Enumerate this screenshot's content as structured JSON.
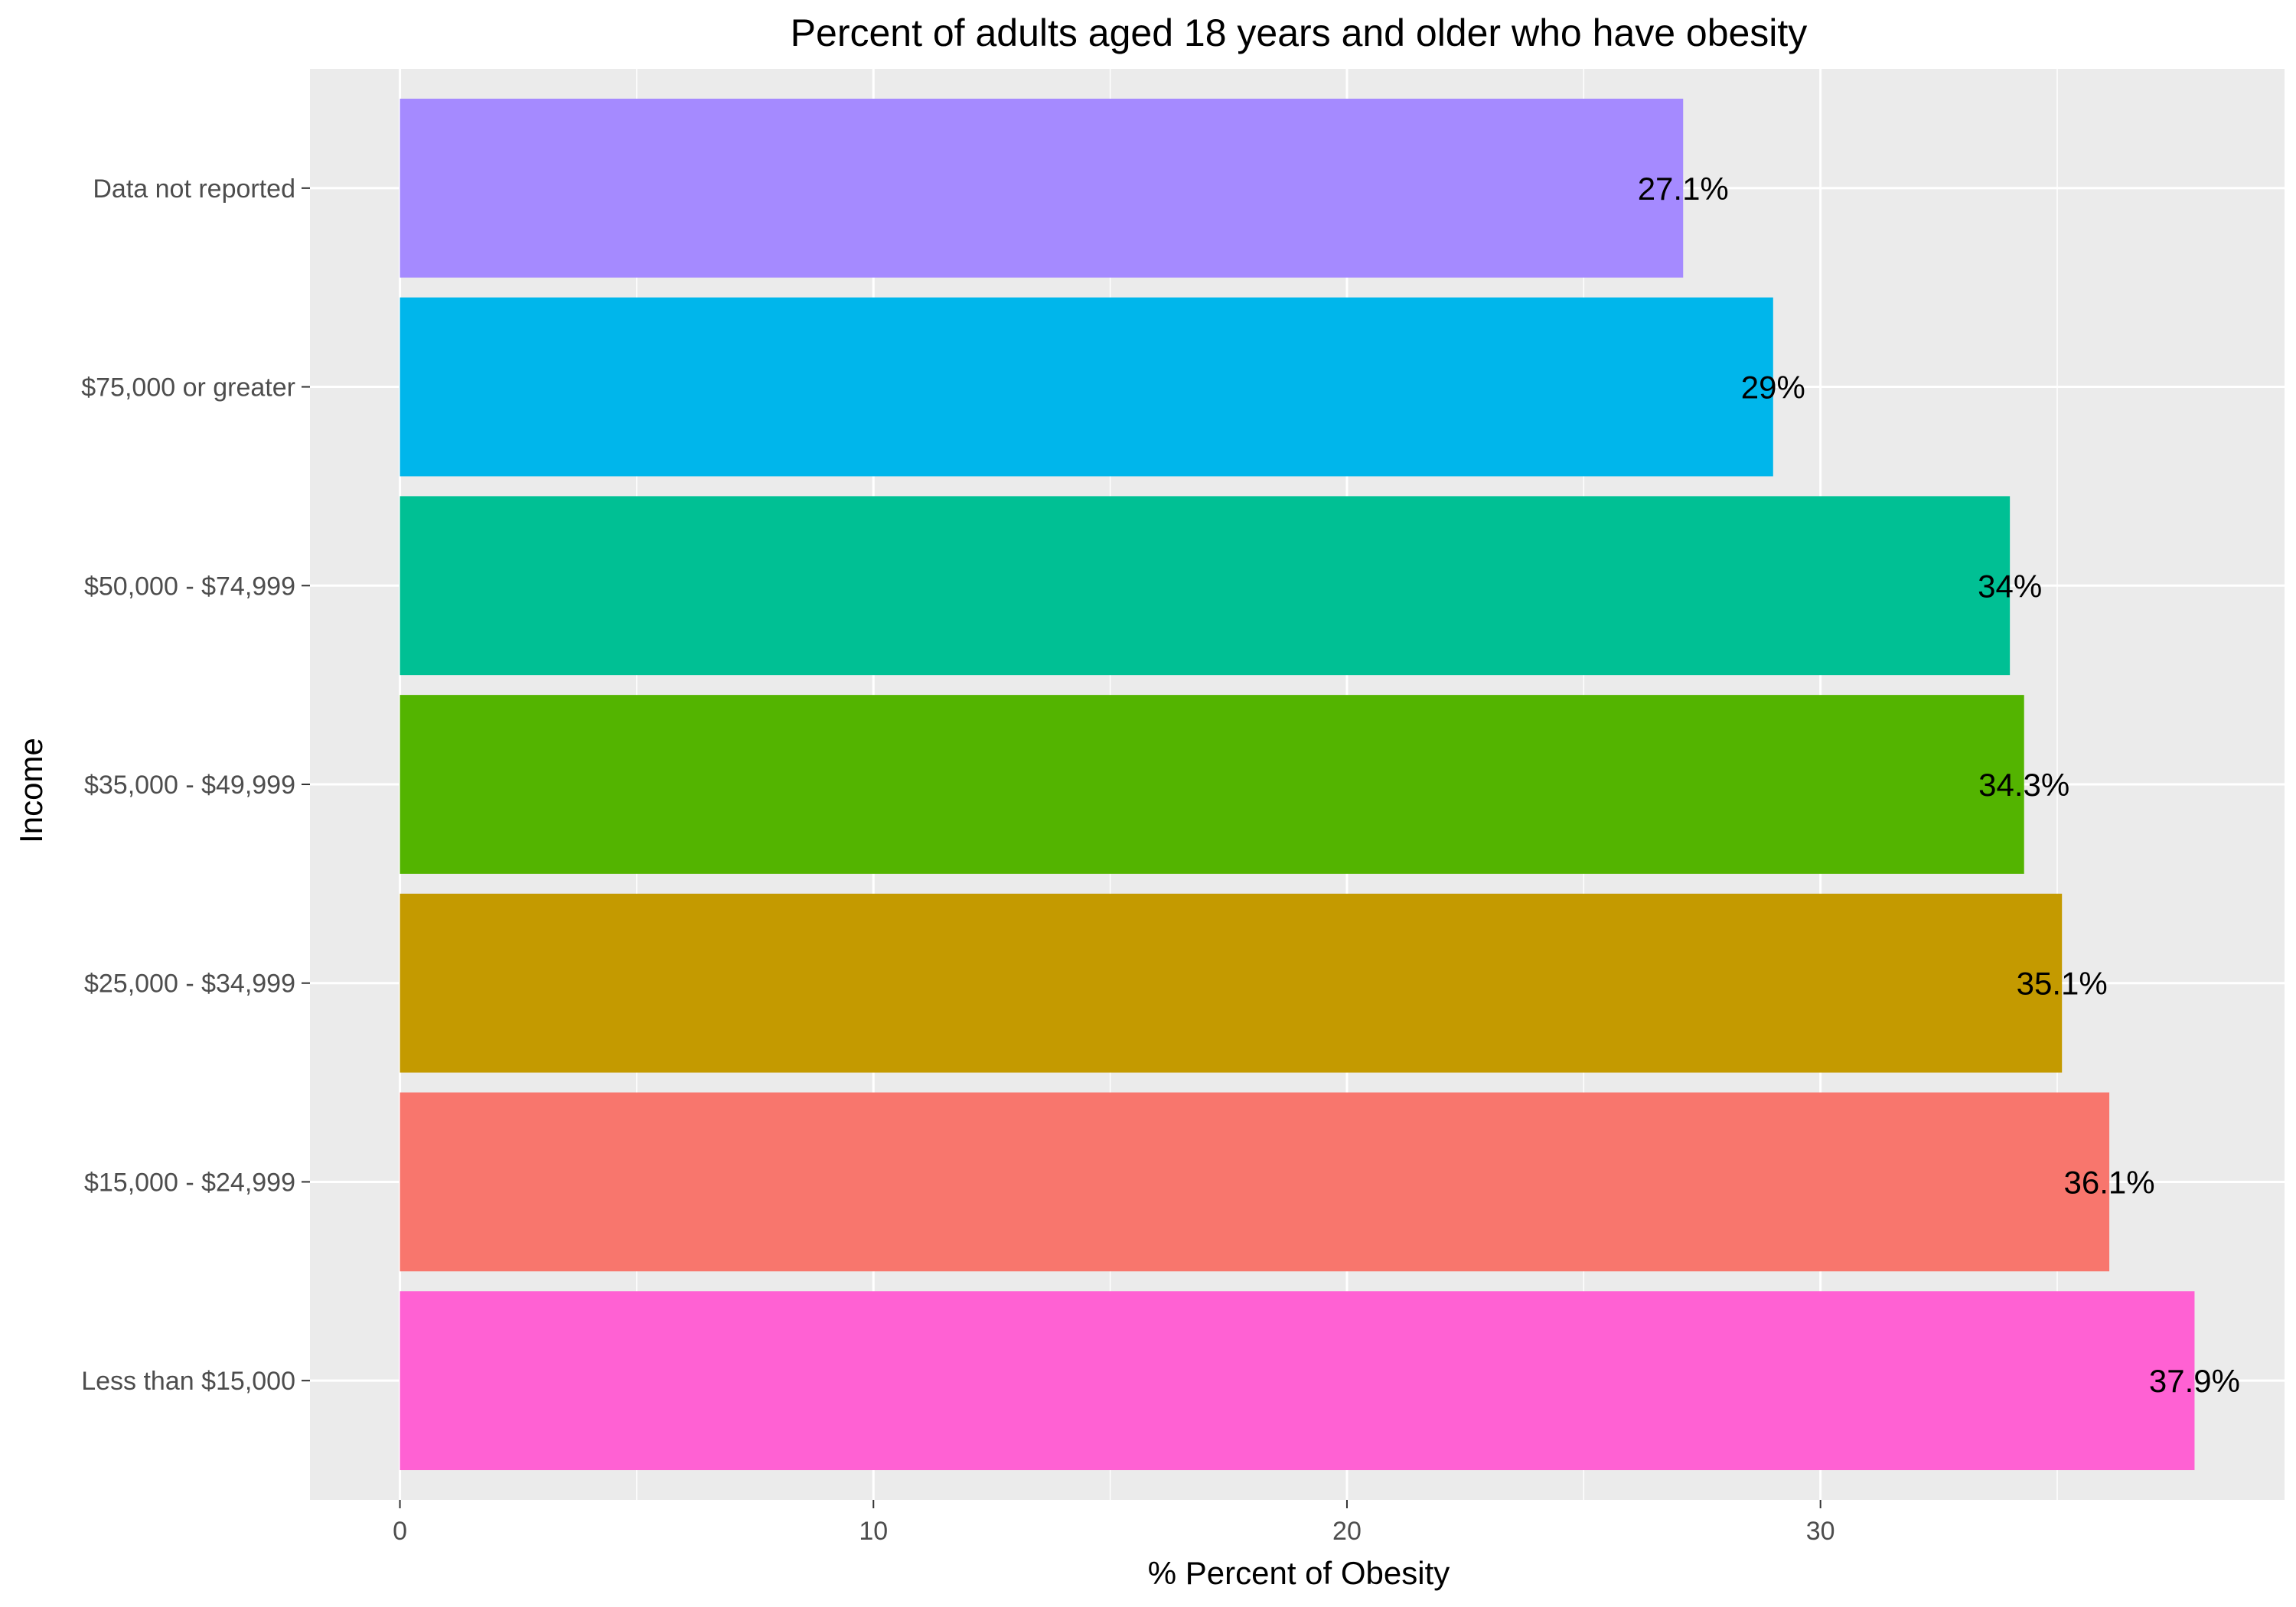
{
  "chart_data": {
    "type": "bar",
    "orientation": "horizontal",
    "title": "Percent of adults aged 18 years and older who have obesity",
    "xlabel": "% Percent of Obesity",
    "ylabel": "Income",
    "categories": [
      "Less than $15,000",
      "$15,000 - $24,999",
      "$25,000 - $34,999",
      "$35,000 - $49,999",
      "$50,000 - $74,999",
      "$75,000 or greater",
      "Data not reported"
    ],
    "values": [
      37.9,
      36.1,
      35.1,
      34.3,
      34,
      29,
      27.1
    ],
    "value_labels": [
      "37.9%",
      "36.1%",
      "35.1%",
      "34.3%",
      "34%",
      "29%",
      "27.1%"
    ],
    "colors": [
      "#FF61D3",
      "#F8766D",
      "#C49A00",
      "#53B400",
      "#00C094",
      "#00B6EB",
      "#A58AFF"
    ],
    "x_ticks": [
      0,
      10,
      20,
      30
    ],
    "x_tick_labels": [
      "0",
      "10",
      "20",
      "30"
    ],
    "xlim": [
      -1.9,
      39.8
    ],
    "grid": true,
    "legend": "none"
  }
}
